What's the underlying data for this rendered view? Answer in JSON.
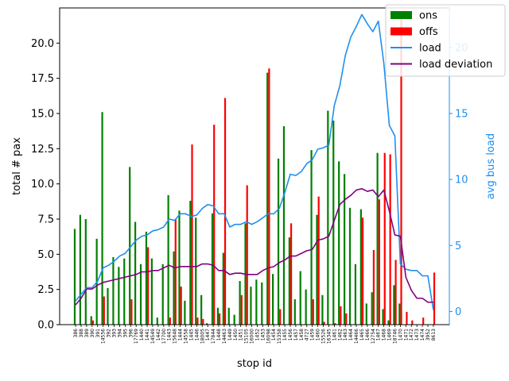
{
  "chart_data": {
    "type": "bar+line",
    "xlabel": "stop id",
    "ylabel": "total # pax",
    "ylabel_right": "avg bus load",
    "ylim": [
      0,
      22.5
    ],
    "ylim_right": [
      -1,
      23
    ],
    "y_ticks": [
      "0.0",
      "2.5",
      "5.0",
      "7.5",
      "10.0",
      "12.5",
      "15.0",
      "17.5",
      "20.0"
    ],
    "y_tick_values": [
      0,
      2.5,
      5,
      7.5,
      10,
      12.5,
      15,
      17.5,
      20
    ],
    "y_right_ticks": [
      "0",
      "5",
      "10",
      "15",
      "20"
    ],
    "y_right_tick_values": [
      0,
      5,
      10,
      15,
      20
    ],
    "categories": [
      "386",
      "388",
      "389",
      "390",
      "391",
      "14556",
      "392",
      "393",
      "394",
      "395",
      "396",
      "17769",
      "1440",
      "1441",
      "14549",
      "1442",
      "17700",
      "1443",
      "15648",
      "1444",
      "14558",
      "1445",
      "1446",
      "18005",
      "1447",
      "17844",
      "1448",
      "14463",
      "1449",
      "1450",
      "1451",
      "15105",
      "16000",
      "1452",
      "1453",
      "16098",
      "1454",
      "15358",
      "1455",
      "1456",
      "1457",
      "1458",
      "4727",
      "1459",
      "1460",
      "15526",
      "16345",
      "1461",
      "1462",
      "1463",
      "1464",
      "14466",
      "1465",
      "1466",
      "12754",
      "1467",
      "1468",
      "1469",
      "18746",
      "1470",
      "1471",
      "1472",
      "1473",
      "1474",
      "3952",
      "8613"
    ],
    "series": [
      {
        "name": "ons",
        "color": "#008000",
        "values": [
          6.8,
          7.8,
          7.5,
          0.6,
          6.1,
          15.1,
          2.6,
          4.8,
          4.1,
          4.7,
          11.2,
          7.3,
          4.3,
          6.6,
          4.7,
          0.5,
          4.3,
          9.2,
          5.2,
          8.1,
          1.7,
          8.8,
          7.6,
          2.1,
          0.1,
          7.9,
          1.2,
          5.1,
          1.2,
          0.7,
          3.1,
          7.2,
          2.7,
          3.2,
          3.0,
          17.9,
          3.6,
          11.8,
          14.1,
          6.2,
          1.8,
          3.8,
          2.5,
          12.4,
          7.8,
          2.1,
          15.2,
          14.5,
          11.6,
          10.7,
          8.3,
          4.3,
          8.2,
          1.5,
          2.3,
          12.2,
          1.1,
          0.3,
          2.8,
          1.5,
          0.0,
          0.0,
          0.0,
          0.0,
          0.0,
          0.0
        ]
      },
      {
        "name": "offs",
        "color": "#ff0000",
        "values": [
          0.0,
          0.0,
          0.0,
          0.3,
          0.0,
          2.0,
          0.0,
          0.0,
          0.0,
          0.0,
          1.8,
          0.0,
          0.0,
          5.5,
          0.0,
          0.0,
          0.0,
          0.5,
          7.5,
          2.7,
          0.0,
          12.8,
          0.5,
          0.4,
          0.0,
          14.2,
          0.8,
          16.1,
          0.0,
          0.0,
          2.1,
          9.9,
          0.0,
          0.0,
          0.0,
          18.2,
          0.0,
          1.1,
          0.0,
          7.2,
          0.0,
          0.0,
          0.0,
          1.8,
          9.1,
          0.2,
          0.0,
          0.1,
          1.3,
          0.8,
          0.0,
          0.0,
          7.6,
          0.0,
          5.3,
          8.9,
          12.2,
          12.1,
          4.6,
          21.9,
          0.9,
          0.3,
          0.0,
          0.5,
          0.0,
          3.7
        ]
      },
      {
        "name": "load",
        "color": "#1f8fef",
        "axis": "right",
        "values": [
          0.8,
          1.3,
          1.8,
          1.8,
          2.3,
          3.3,
          3.5,
          3.8,
          4.2,
          4.4,
          4.9,
          5.4,
          5.7,
          5.8,
          6.1,
          6.2,
          6.4,
          7.0,
          6.9,
          7.4,
          7.4,
          7.2,
          7.3,
          7.8,
          8.1,
          8.0,
          7.4,
          7.4,
          6.4,
          6.6,
          6.6,
          6.8,
          6.6,
          6.8,
          7.1,
          7.4,
          7.4,
          7.8,
          9.0,
          10.4,
          10.3,
          10.6,
          11.2,
          11.5,
          12.3,
          12.4,
          12.6,
          15.6,
          17.1,
          19.4,
          20.8,
          21.6,
          22.5,
          21.8,
          21.2,
          22.0,
          18.8,
          14.1,
          13.3,
          3.6,
          3.2,
          3.1,
          3.1,
          2.7,
          2.7,
          0.1
        ]
      },
      {
        "name": "load deviation",
        "color": "#800080",
        "axis": "right",
        "values": [
          0.5,
          1.0,
          1.7,
          1.7,
          2.0,
          2.2,
          2.3,
          2.4,
          2.5,
          2.6,
          2.7,
          2.8,
          3.0,
          3.0,
          3.1,
          3.1,
          3.3,
          3.5,
          3.3,
          3.4,
          3.4,
          3.4,
          3.4,
          3.6,
          3.6,
          3.5,
          3.1,
          3.1,
          2.8,
          2.9,
          2.9,
          2.8,
          2.8,
          2.8,
          3.1,
          3.3,
          3.4,
          3.7,
          3.9,
          4.2,
          4.2,
          4.4,
          4.6,
          4.7,
          5.4,
          5.5,
          5.7,
          6.9,
          8.1,
          8.5,
          8.8,
          9.2,
          9.3,
          9.1,
          9.2,
          8.7,
          9.2,
          7.6,
          5.8,
          5.7,
          2.6,
          1.6,
          1.0,
          1.0,
          0.7,
          0.7
        ]
      }
    ],
    "legend": {
      "position": "top-right",
      "entries": [
        {
          "label": "ons",
          "kind": "patch",
          "color": "#008000"
        },
        {
          "label": "offs",
          "kind": "patch",
          "color": "#ff0000"
        },
        {
          "label": "load",
          "kind": "line",
          "color": "#1f8fef"
        },
        {
          "label": "load deviation",
          "kind": "line",
          "color": "#800080"
        }
      ]
    },
    "colors": {
      "left_axis": "#000000",
      "right_axis": "#1f8fef"
    }
  }
}
